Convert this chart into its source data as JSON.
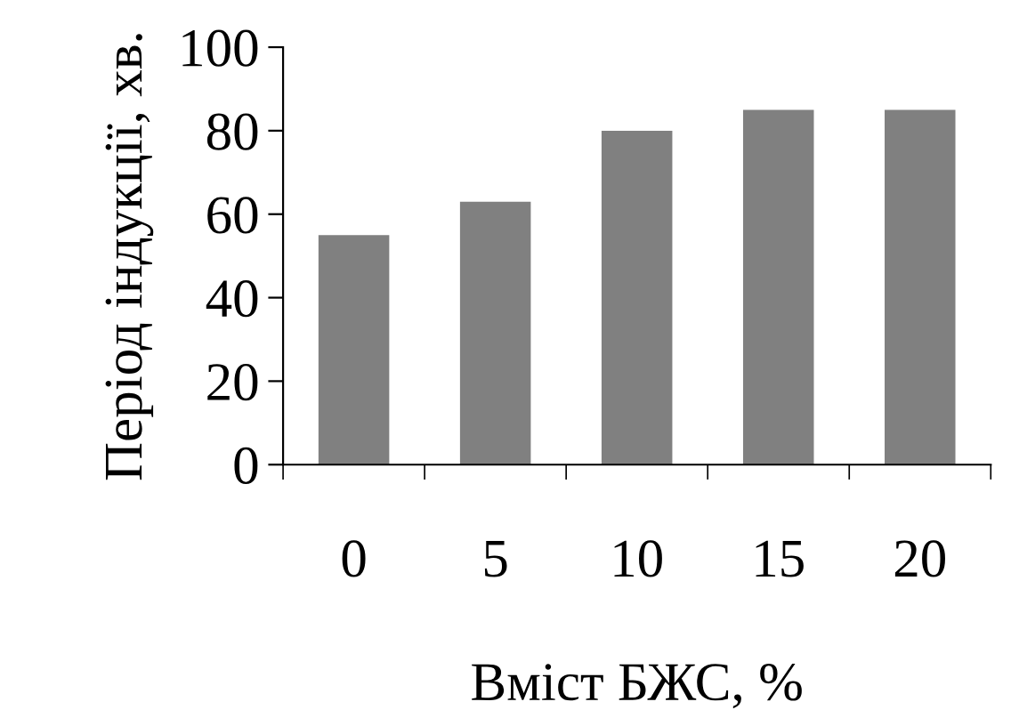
{
  "chart_data": {
    "type": "bar",
    "xlabel": "Вміст БЖС, %",
    "ylabel": "Період індукції, хв.",
    "categories": [
      "0",
      "5",
      "10",
      "15",
      "20"
    ],
    "values": [
      55,
      63,
      80,
      85,
      85
    ],
    "color": "#808080",
    "ylim": [
      0,
      100
    ],
    "yticks": [
      0,
      20,
      40,
      60,
      80,
      100
    ],
    "grid": false,
    "legend": false
  }
}
